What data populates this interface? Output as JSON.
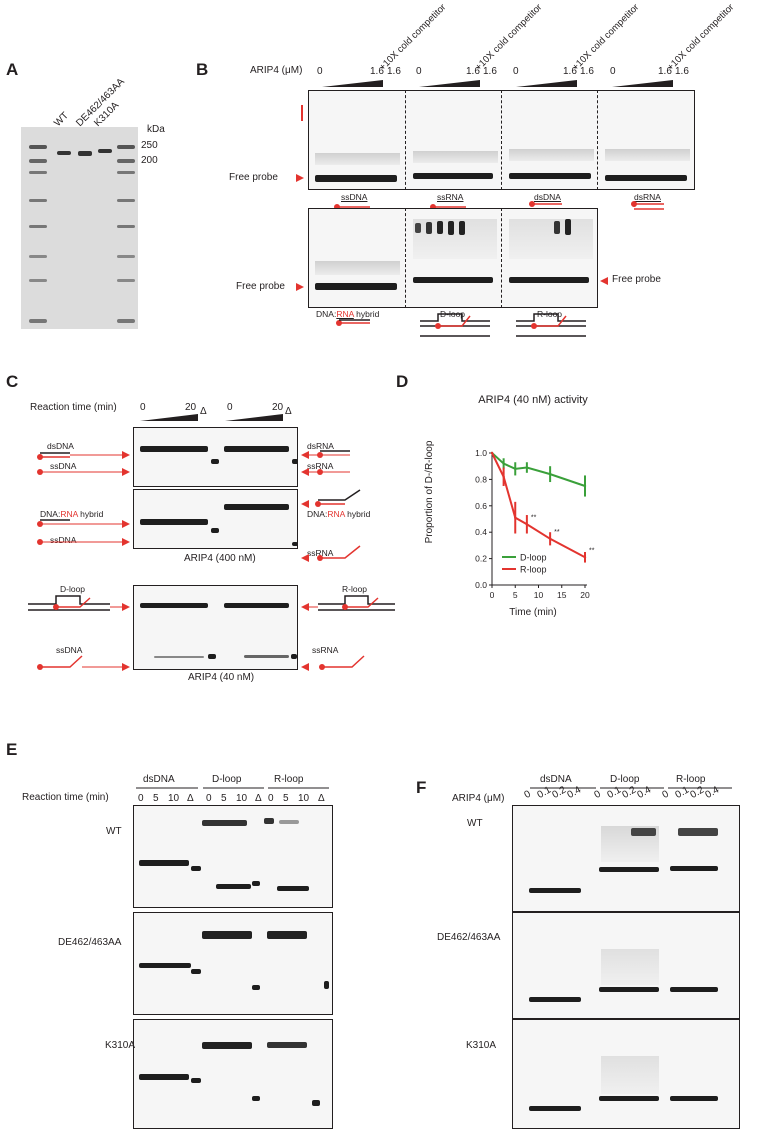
{
  "panels": {
    "A": "A",
    "B": "B",
    "C": "C",
    "D": "D",
    "E": "E",
    "F": "F"
  },
  "panelA": {
    "lanes": [
      "WT",
      "DE462/463AA",
      "K310A"
    ],
    "kda_label": "kDa",
    "markers": [
      "250",
      "200"
    ]
  },
  "panelB": {
    "conc_label": "ARIP4 (μM)",
    "conc_start": "0",
    "conc_end": "1.6",
    "conc_comp": "1.6",
    "competitor": "+10X cold competitor",
    "free_probe": "Free probe",
    "substrates_top": [
      "ssDNA",
      "ssRNA",
      "dsDNA",
      "dsRNA"
    ],
    "substrates_bottom": {
      "hybrid_pre": "DNA:",
      "hybrid_rna": "RNA",
      "hybrid_post": " hybrid",
      "dloop": "D-loop",
      "rloop": "R-loop"
    }
  },
  "panelC": {
    "time_label": "Reaction time (min)",
    "time_start": "0",
    "time_end": "20",
    "delta": "Δ",
    "gel1": {
      "left_top": "dsDNA",
      "left_bottom": "ssDNA",
      "right_top": "dsRNA",
      "right_bottom": "ssRNA"
    },
    "gel2": {
      "hyb_pre": "DNA:",
      "hyb_rna": "RNA",
      "hyb_post": " hybrid",
      "left_bottom": "ssDNA",
      "right_bottom": "ssRNA"
    },
    "gel_caption_1": "ARIP4 (400 nM)",
    "gel3": {
      "left_top": "D-loop",
      "left_bottom": "ssDNA",
      "right_top": "R-loop",
      "right_bottom": "ssRNA"
    },
    "gel_caption_2": "ARIP4 (40 nM)"
  },
  "chart_data": {
    "type": "line",
    "title": "ARIP4 (40 nM) activity",
    "xlabel": "Time (min)",
    "ylabel": "Proportion of D-/R-loop",
    "xlim": [
      0,
      20
    ],
    "ylim": [
      0,
      1.0
    ],
    "xticks": [
      "0",
      "5",
      "10",
      "15",
      "20"
    ],
    "yticks": [
      "0.0",
      "0.2",
      "0.4",
      "0.6",
      "0.8",
      "1.0"
    ],
    "significance": "**",
    "legend_position": "lower-left",
    "series": [
      {
        "name": "D-loop",
        "color": "#3aa03a",
        "x": [
          0,
          2.5,
          5,
          7.5,
          12.5,
          20
        ],
        "y": [
          1.0,
          0.92,
          0.88,
          0.89,
          0.84,
          0.75
        ],
        "err": [
          0,
          0.04,
          0.05,
          0.04,
          0.06,
          0.08
        ],
        "sig": [
          false,
          false,
          false,
          false,
          false,
          false
        ]
      },
      {
        "name": "R-loop",
        "color": "#e3342f",
        "x": [
          0,
          2.5,
          5,
          7.5,
          12.5,
          20
        ],
        "y": [
          1.0,
          0.82,
          0.51,
          0.46,
          0.35,
          0.21
        ],
        "err": [
          0,
          0.07,
          0.12,
          0.07,
          0.05,
          0.04
        ],
        "sig": [
          false,
          false,
          false,
          true,
          true,
          true
        ]
      }
    ]
  },
  "panelE": {
    "groups": [
      "dsDNA",
      "D-loop",
      "R-loop"
    ],
    "time_label": "Reaction time (min)",
    "times": [
      "0",
      "5",
      "10",
      "Δ"
    ],
    "rows": [
      "WT",
      "DE462/463AA",
      "K310A"
    ]
  },
  "panelF": {
    "groups": [
      "dsDNA",
      "D-loop",
      "R-loop"
    ],
    "conc_label": "ARIP4 (μM)",
    "concs": [
      "0",
      "0.1",
      "0.2",
      "0.4"
    ],
    "rows": [
      "WT",
      "DE462/463AA",
      "K310A"
    ]
  }
}
